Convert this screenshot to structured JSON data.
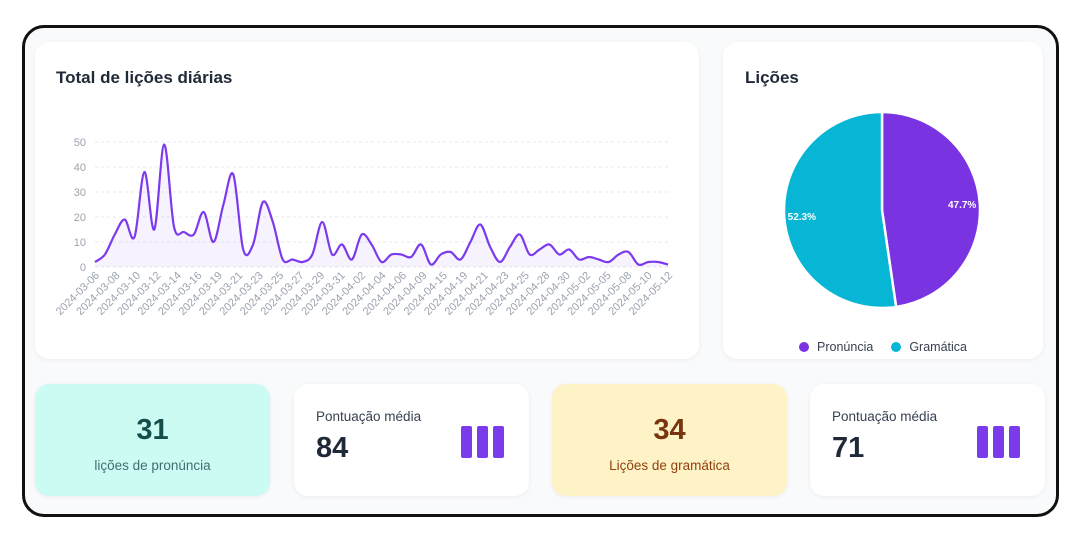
{
  "line_chart": {
    "title": "Total de lições diárias",
    "color": "#7c3aed",
    "fill": "rgba(124,58,237,0.06)"
  },
  "pie_chart": {
    "title": "Lições",
    "colors": {
      "pronuncia": "#7a33e0",
      "gramatica": "#06b6d4"
    },
    "legend": [
      {
        "label": "Pronúncia",
        "color": "#7a33e0"
      },
      {
        "label": "Gramática",
        "color": "#06b6d4"
      }
    ]
  },
  "chart_data": [
    {
      "type": "area",
      "title": "Total de lições diárias",
      "xlabel": "",
      "ylabel": "",
      "ylim": [
        0,
        50
      ],
      "yticks": [
        0,
        10,
        20,
        30,
        40,
        50
      ],
      "grid": true,
      "tick_labels": [
        "2024-03-06",
        "2024-03-08",
        "2024-03-10",
        "2024-03-12",
        "2024-03-14",
        "2024-03-16",
        "2024-03-19",
        "2024-03-21",
        "2024-03-23",
        "2024-03-25",
        "2024-03-27",
        "2024-03-29",
        "2024-03-31",
        "2024-04-02",
        "2024-04-04",
        "2024-04-06",
        "2024-04-09",
        "2024-04-15",
        "2024-04-19",
        "2024-04-21",
        "2024-04-23",
        "2024-04-25",
        "2024-04-28",
        "2024-04-30",
        "2024-05-02",
        "2024-05-05",
        "2024-05-08",
        "2024-05-10",
        "2024-05-12"
      ],
      "values": [
        2,
        5,
        13,
        19,
        12,
        38,
        15,
        49,
        16,
        14,
        13,
        22,
        10,
        25,
        37,
        7,
        9,
        26,
        18,
        3,
        3,
        2,
        5,
        18,
        5,
        9,
        3,
        13,
        9,
        2,
        5,
        5,
        4,
        9,
        1,
        5,
        6,
        3,
        10,
        17,
        8,
        2,
        8,
        13,
        5,
        7,
        9,
        5,
        7,
        3,
        4,
        3,
        2,
        5,
        6,
        1,
        2,
        2,
        1
      ]
    },
    {
      "type": "pie",
      "title": "Lições",
      "labels": [
        "Pronúncia",
        "Gramática"
      ],
      "values": [
        47.7,
        52.3
      ],
      "value_labels": [
        "47.7%",
        "52.3%"
      ],
      "legend": "bottom"
    }
  ],
  "stats": {
    "pronuncia": {
      "value": "31",
      "label": "lições de pronúncia"
    },
    "score_1": {
      "label": "Pontuação média",
      "value": "84",
      "icon": "bar-chart-icon"
    },
    "gramatica": {
      "value": "34",
      "label": "Lições de gramática"
    },
    "score_2": {
      "label": "Pontuação média",
      "value": "71",
      "icon": "bar-chart-icon"
    }
  }
}
